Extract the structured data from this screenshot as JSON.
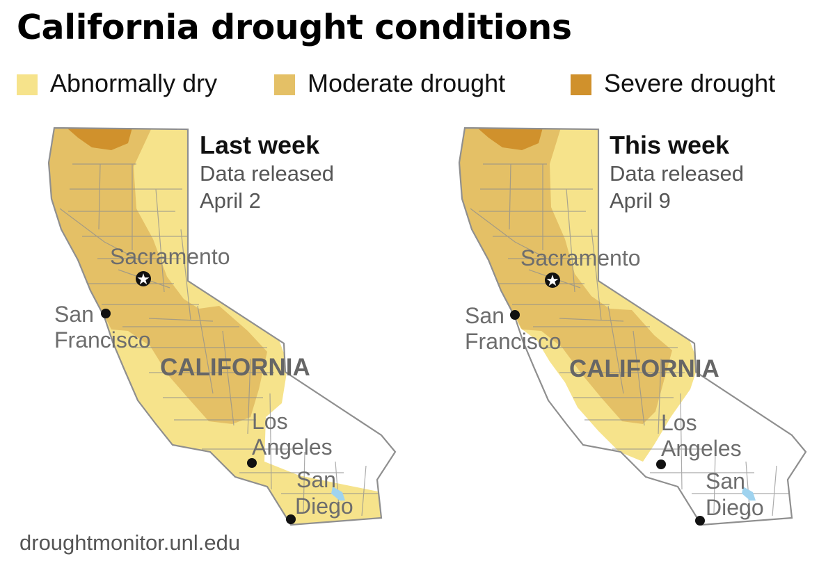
{
  "title": "California drought conditions",
  "legend": [
    {
      "label": "Abnormally dry",
      "color": "#f6e38b"
    },
    {
      "label": "Moderate drought",
      "color": "#e4c066"
    },
    {
      "label": "Severe drought",
      "color": "#d0912c"
    }
  ],
  "panels": [
    {
      "title": "Last week",
      "subtitle_line1": "Data released",
      "subtitle_line2": "April 2"
    },
    {
      "title": "This week",
      "subtitle_line1": "Data released",
      "subtitle_line2": "April 9"
    }
  ],
  "map_labels": {
    "state": "CALIFORNIA",
    "sacramento": "Sacramento",
    "san_francisco_line1": "San",
    "san_francisco_line2": "Francisco",
    "los_angeles_line1": "Los",
    "los_angeles_line2": "Angeles",
    "san_diego_line1": "San",
    "san_diego_line2": "Diego"
  },
  "source": "droughtmonitor.unl.edu",
  "colors": {
    "outline": "#8f8f8f",
    "city_dot": "#111111",
    "lake": "#9fd3ef",
    "label_gray": "#6d6d6d"
  }
}
